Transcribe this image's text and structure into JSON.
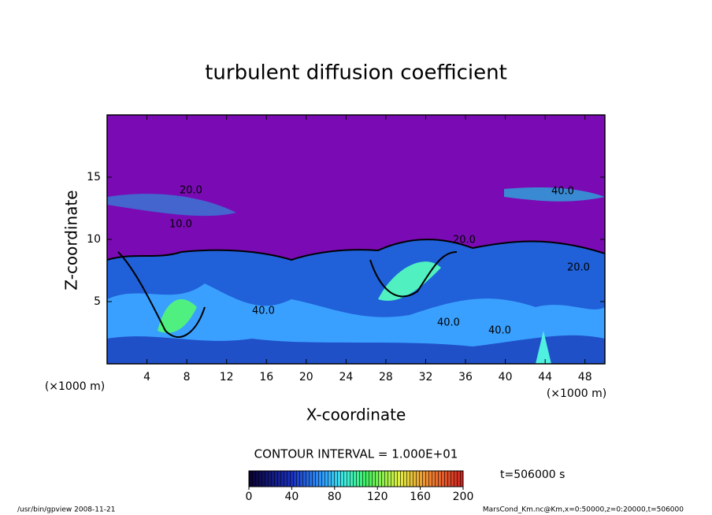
{
  "chart_data": {
    "type": "contour",
    "title": "turbulent diffusion coefficient",
    "x_label": "X-coordinate",
    "y_label": "Z-coordinate",
    "x_unit": "(×1000 m)",
    "y_unit": "(×1000 m)",
    "xlim": [
      0,
      50
    ],
    "xticks": [
      4,
      8,
      12,
      16,
      20,
      24,
      28,
      32,
      36,
      40,
      44,
      48
    ],
    "ylim": [
      0,
      20
    ],
    "yticks": [
      5,
      10,
      15
    ],
    "contour_labels": [
      "10.0",
      "20.0",
      "40.0",
      "40.0",
      "40.0",
      "20.0",
      "20.0",
      "40.0"
    ],
    "contour_interval": "CONTOUR INTERVAL = 1.000E+01",
    "time_label": "t=506000 s",
    "colorbar_lim": [
      0,
      200
    ],
    "colorbar_ticks": [
      0,
      40,
      80,
      120,
      160,
      200
    ],
    "footer_left": "/usr/bin/gpview   2008-11-21",
    "footer_right": "MarsCond_Km.nc@Km,x=0:50000,z=0:20000,t=506000"
  }
}
